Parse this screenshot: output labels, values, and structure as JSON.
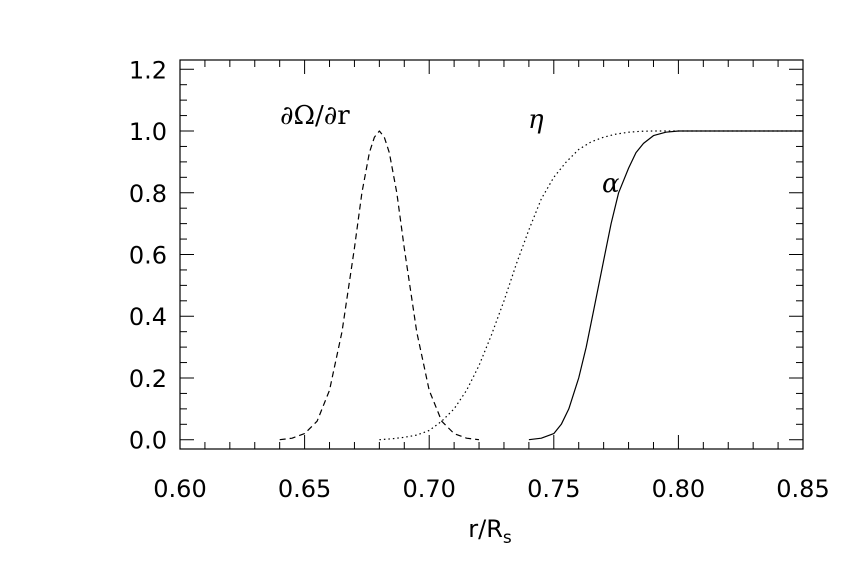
{
  "chart_data": {
    "type": "line",
    "title": "",
    "xlabel": "r/R",
    "xlabel_subscript": "s",
    "ylabel": "",
    "xlim": [
      0.6,
      0.85
    ],
    "ylim": [
      -0.03,
      1.23
    ],
    "xticks": [
      "0.60",
      "0.65",
      "0.70",
      "0.75",
      "0.80",
      "0.85"
    ],
    "yticks": [
      "0.0",
      "0.2",
      "0.4",
      "0.6",
      "0.8",
      "1.0",
      "1.2"
    ],
    "grid": false,
    "legend": "none",
    "series": [
      {
        "name": "∂Ω/∂r",
        "style": "dashed",
        "x": [
          0.64,
          0.645,
          0.65,
          0.655,
          0.66,
          0.665,
          0.67,
          0.673,
          0.676,
          0.678,
          0.68,
          0.682,
          0.684,
          0.687,
          0.69,
          0.695,
          0.7,
          0.705,
          0.71,
          0.715,
          0.72
        ],
        "y": [
          0.0,
          0.005,
          0.02,
          0.06,
          0.16,
          0.35,
          0.62,
          0.8,
          0.93,
          0.98,
          1.0,
          0.98,
          0.93,
          0.8,
          0.62,
          0.35,
          0.16,
          0.06,
          0.02,
          0.005,
          0.0
        ]
      },
      {
        "name": "η",
        "style": "dotted",
        "x": [
          0.68,
          0.685,
          0.69,
          0.695,
          0.7,
          0.705,
          0.71,
          0.715,
          0.72,
          0.725,
          0.73,
          0.735,
          0.74,
          0.745,
          0.75,
          0.755,
          0.76,
          0.765,
          0.77,
          0.775,
          0.78,
          0.785,
          0.79,
          0.85
        ],
        "y": [
          0.0,
          0.003,
          0.008,
          0.015,
          0.03,
          0.06,
          0.1,
          0.16,
          0.24,
          0.34,
          0.45,
          0.57,
          0.68,
          0.78,
          0.85,
          0.9,
          0.94,
          0.965,
          0.98,
          0.99,
          0.996,
          0.999,
          1.0,
          1.0
        ]
      },
      {
        "name": "α",
        "style": "solid",
        "x": [
          0.74,
          0.745,
          0.75,
          0.753,
          0.756,
          0.76,
          0.763,
          0.766,
          0.77,
          0.773,
          0.776,
          0.78,
          0.783,
          0.786,
          0.79,
          0.795,
          0.8,
          0.85
        ],
        "y": [
          0.0,
          0.005,
          0.02,
          0.05,
          0.1,
          0.2,
          0.3,
          0.42,
          0.58,
          0.7,
          0.8,
          0.88,
          0.93,
          0.96,
          0.985,
          0.996,
          1.0,
          1.0
        ]
      }
    ]
  },
  "labels": {
    "domega": "∂Ω/∂r",
    "eta": "η",
    "alpha": "α"
  }
}
